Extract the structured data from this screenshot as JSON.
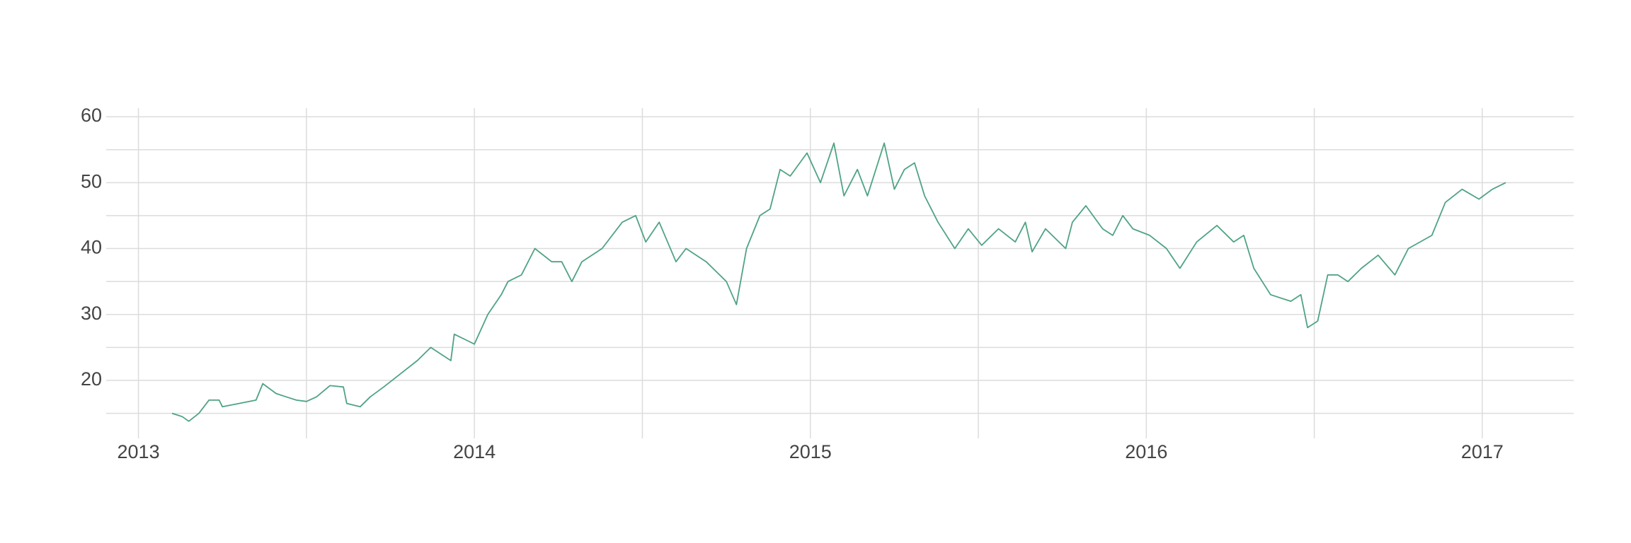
{
  "chart_data": {
    "type": "line",
    "x": [
      2013.1,
      2013.13,
      2013.15,
      2013.18,
      2013.21,
      2013.24,
      2013.25,
      2013.3,
      2013.35,
      2013.37,
      2013.41,
      2013.44,
      2013.47,
      2013.5,
      2013.53,
      2013.57,
      2013.61,
      2013.62,
      2013.66,
      2013.69,
      2013.73,
      2013.78,
      2013.83,
      2013.87,
      2013.9,
      2013.93,
      2013.94,
      2013.98,
      2014.0,
      2014.04,
      2014.08,
      2014.1,
      2014.14,
      2014.18,
      2014.23,
      2014.26,
      2014.29,
      2014.32,
      2014.38,
      2014.44,
      2014.48,
      2014.51,
      2014.55,
      2014.6,
      2014.63,
      2014.69,
      2014.75,
      2014.78,
      2014.81,
      2014.85,
      2014.88,
      2014.91,
      2014.94,
      2014.99,
      2015.03,
      2015.07,
      2015.1,
      2015.14,
      2015.17,
      2015.22,
      2015.25,
      2015.28,
      2015.31,
      2015.34,
      2015.38,
      2015.43,
      2015.47,
      2015.51,
      2015.56,
      2015.61,
      2015.64,
      2015.66,
      2015.7,
      2015.76,
      2015.78,
      2015.82,
      2015.87,
      2015.9,
      2015.93,
      2015.96,
      2016.01,
      2016.06,
      2016.1,
      2016.15,
      2016.21,
      2016.26,
      2016.29,
      2016.32,
      2016.37,
      2016.43,
      2016.46,
      2016.48,
      2016.51,
      2016.54,
      2016.57,
      2016.6,
      2016.64,
      2016.69,
      2016.74,
      2016.78,
      2016.85,
      2016.89,
      2016.94,
      2016.99,
      2017.03,
      2017.07
    ],
    "values": [
      15,
      14.5,
      13.8,
      15,
      17,
      17,
      16,
      16.5,
      17,
      19.5,
      18,
      17.5,
      17,
      16.8,
      17.5,
      19.2,
      19,
      16.5,
      16,
      17.5,
      19,
      21,
      23,
      25,
      24,
      23,
      27,
      26,
      25.5,
      30,
      33,
      35,
      36,
      40,
      38,
      38,
      35,
      38,
      40,
      44,
      45,
      41,
      44,
      38,
      40,
      38,
      35,
      31.5,
      40,
      45,
      46,
      52,
      51,
      54.5,
      50,
      56,
      48,
      52,
      48,
      56,
      49,
      52,
      53,
      48,
      44,
      40,
      43,
      40.5,
      43,
      41,
      44,
      39.5,
      43,
      40,
      44,
      46.5,
      43,
      42,
      45,
      43,
      42,
      40,
      37,
      41,
      43.5,
      41,
      42,
      37,
      33,
      32,
      33,
      28,
      29,
      36,
      36,
      35,
      37,
      39,
      36,
      40,
      42,
      47,
      49,
      47.5,
      49,
      50
    ],
    "color": "#4fa383",
    "xlim": [
      2012.904,
      2017.272
    ],
    "xticks": [
      2013,
      2014,
      2015,
      2016,
      2017
    ],
    "x_minor_ticks": [
      2013.5,
      2014.5,
      2015.5,
      2016.5
    ],
    "ylim": [
      11.2,
      61.3
    ],
    "yticks": [
      20,
      30,
      40,
      50,
      60
    ],
    "y_minor_ticks": [
      15,
      25,
      35,
      45,
      55
    ],
    "grid": true
  }
}
